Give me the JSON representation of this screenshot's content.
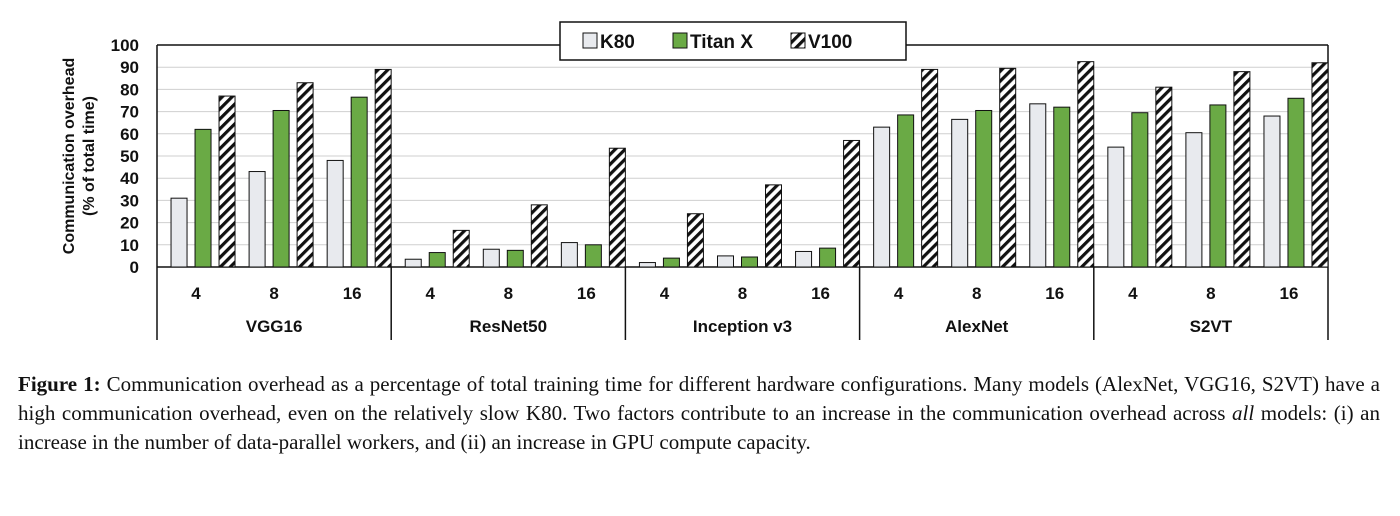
{
  "chart_data": {
    "type": "bar",
    "ylabel_lines": [
      "Communication overhead",
      "(% of total time)"
    ],
    "ylim": [
      0,
      100
    ],
    "yticks": [
      0,
      10,
      20,
      30,
      40,
      50,
      60,
      70,
      80,
      90,
      100
    ],
    "grid": true,
    "legend_position": "top-right",
    "groups": [
      {
        "name": "VGG16",
        "categories": [
          "4",
          "8",
          "16"
        ]
      },
      {
        "name": "ResNet50",
        "categories": [
          "4",
          "8",
          "16"
        ]
      },
      {
        "name": "Inception v3",
        "categories": [
          "4",
          "8",
          "16"
        ]
      },
      {
        "name": "AlexNet",
        "categories": [
          "4",
          "8",
          "16"
        ]
      },
      {
        "name": "S2VT",
        "categories": [
          "4",
          "8",
          "16"
        ]
      }
    ],
    "series": [
      {
        "name": "K80",
        "fill": "#e8eaee",
        "pattern": "solid",
        "values": [
          31,
          43,
          48,
          3.5,
          8,
          11,
          2,
          5,
          7,
          63,
          66.5,
          73.5,
          54,
          60.5,
          68
        ]
      },
      {
        "name": "Titan X",
        "fill": "#6aaa45",
        "pattern": "solid",
        "values": [
          62,
          70.5,
          76.5,
          6.5,
          7.5,
          10,
          4,
          4.5,
          8.5,
          68.5,
          70.5,
          72,
          69.5,
          73,
          76
        ]
      },
      {
        "name": "V100",
        "fill": "#ffffff",
        "pattern": "hatch",
        "values": [
          77,
          83,
          89,
          16.5,
          28,
          53.5,
          24,
          37,
          57,
          89,
          89.5,
          92.5,
          81,
          88,
          92
        ]
      }
    ]
  },
  "caption": {
    "label": "Figure 1:",
    "text_before_italic": " Communication overhead as a percentage of total training time for different hardware configurations. Many models (AlexNet, VGG16, S2VT) have a high communication overhead, even on the relatively slow K80. Two factors contribute to an increase in the communication overhead across ",
    "italic": "all",
    "text_after_italic": " models: (i) an increase in the number of data-parallel workers, and (ii) an increase in GPU compute capacity."
  }
}
